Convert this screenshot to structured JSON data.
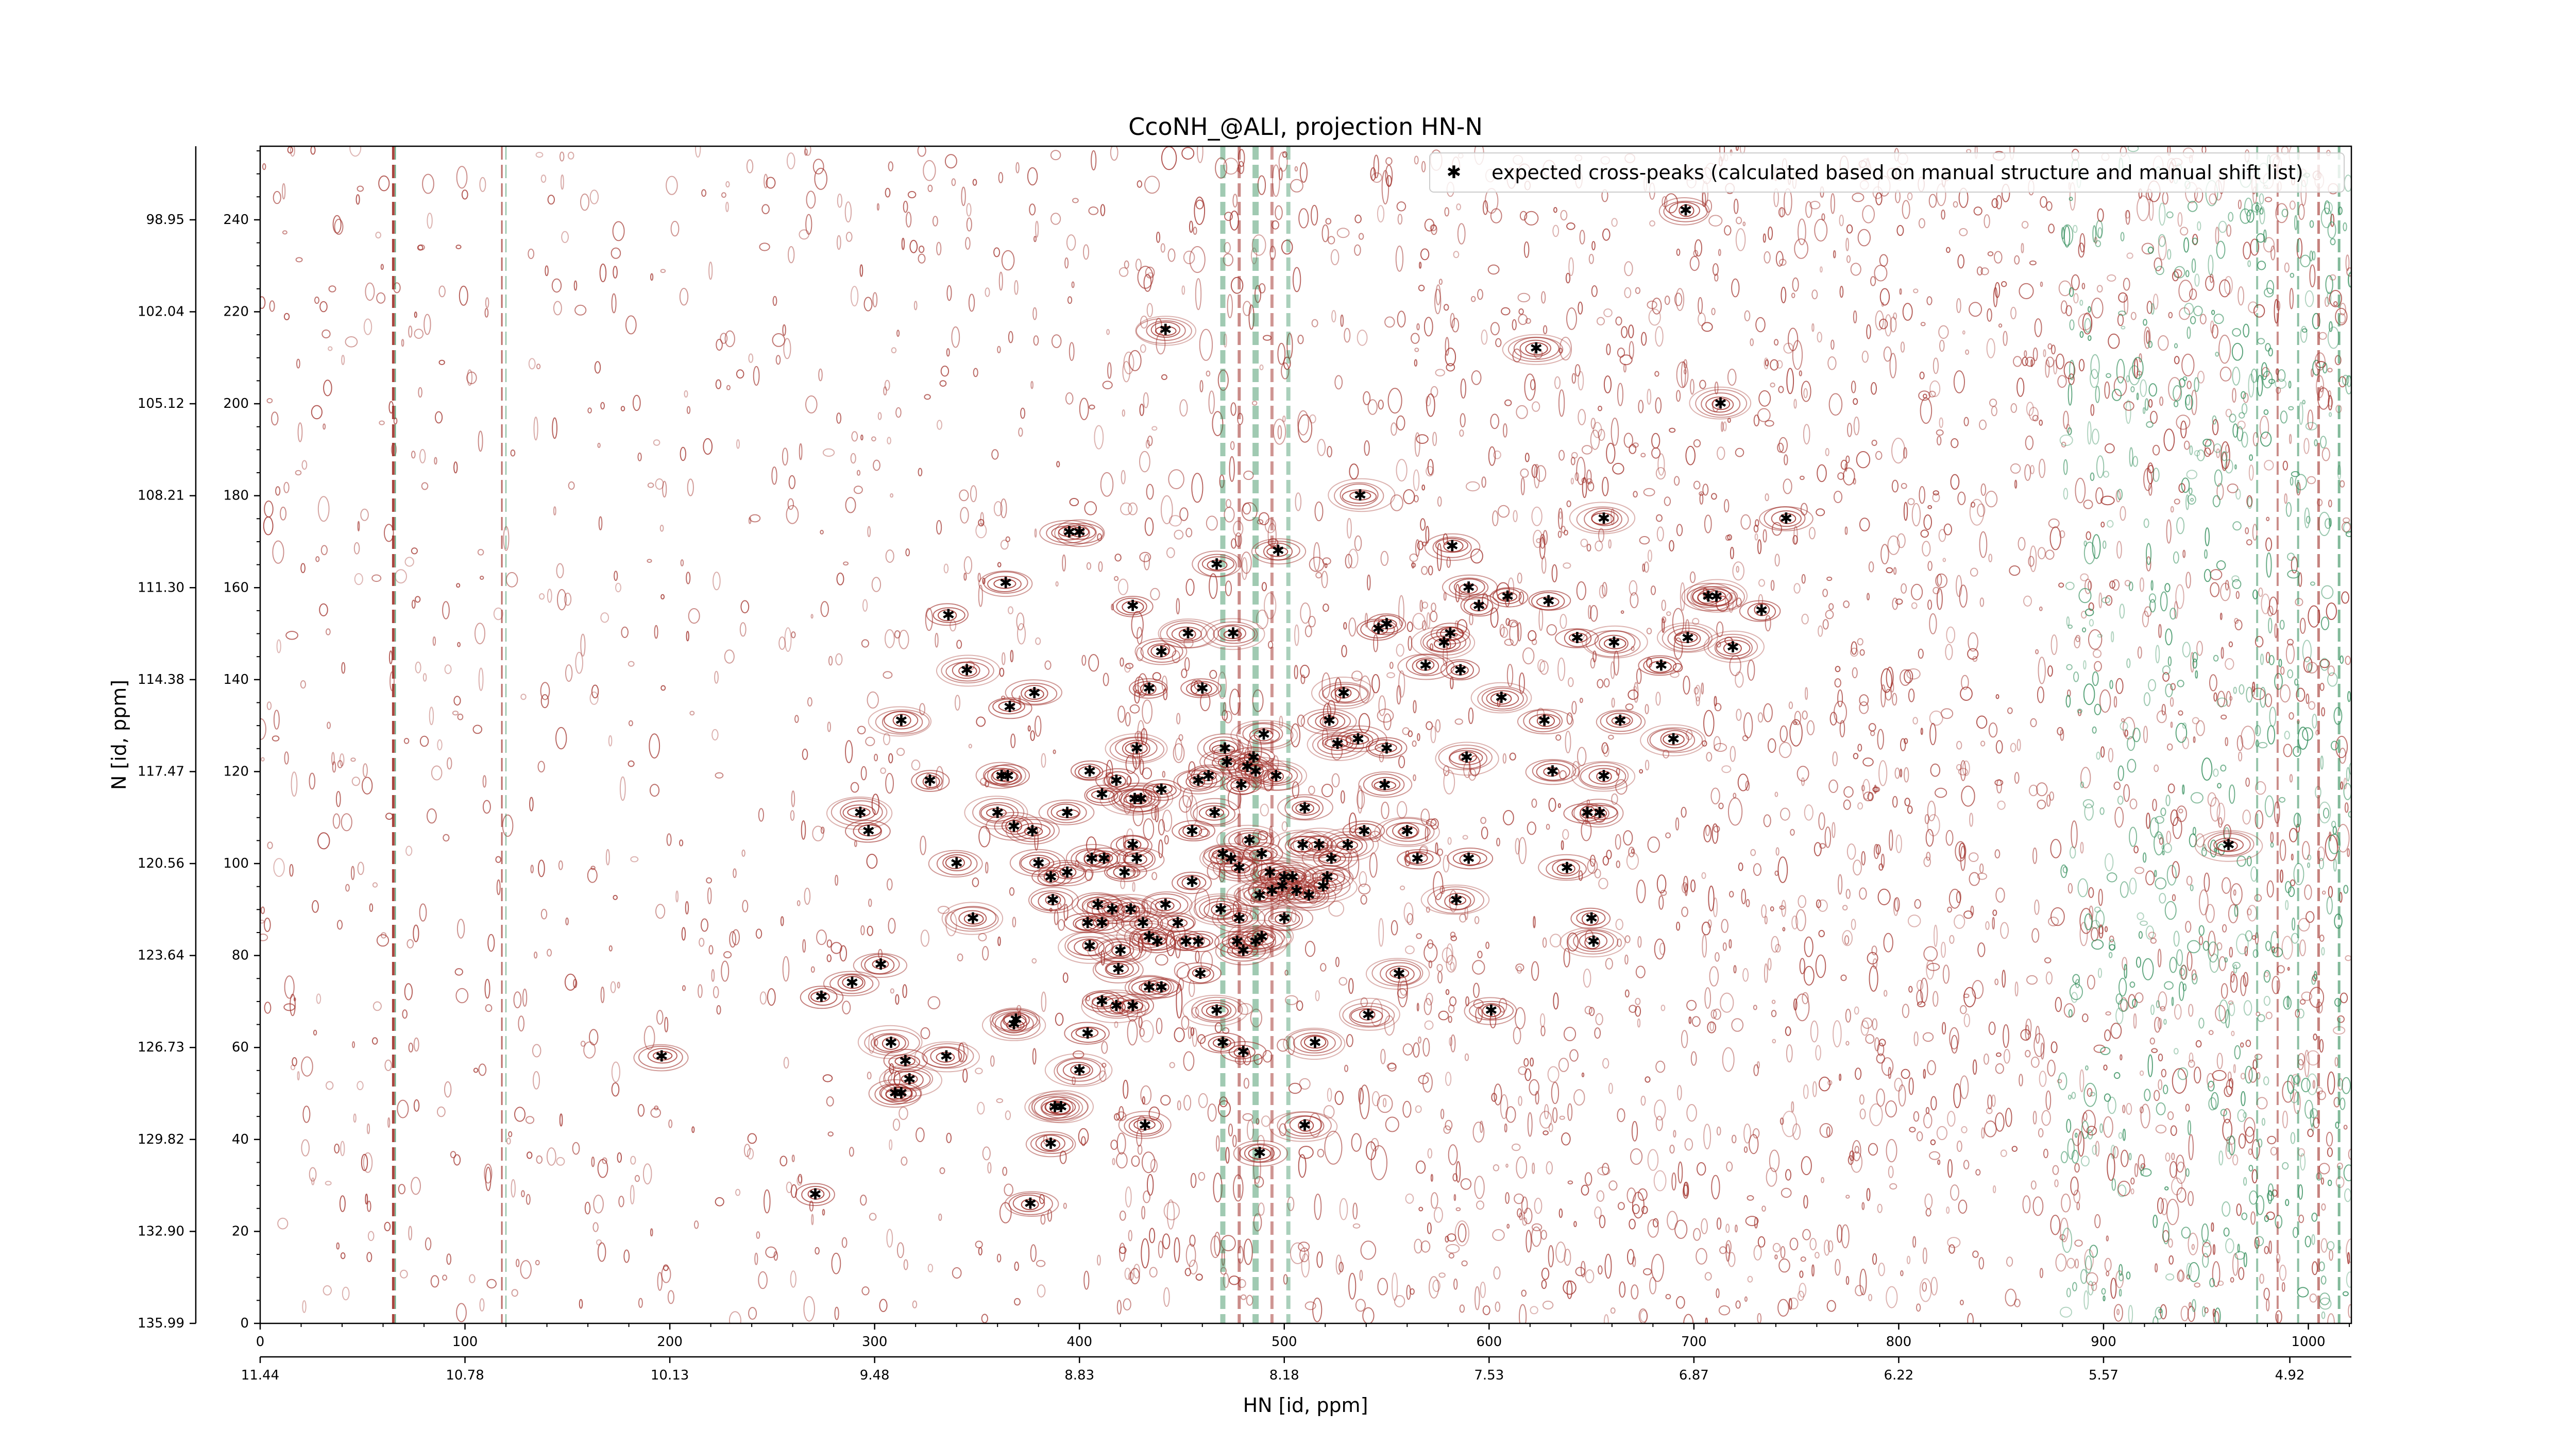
{
  "chart_data": {
    "type": "scatter",
    "title": "CcoNH_@ALI, projection HN-N",
    "xlabel": "HN [id, ppm]",
    "ylabel": "N [id, ppm]",
    "x_index_ticks": [
      "0",
      "100",
      "200",
      "300",
      "400",
      "500",
      "600",
      "700",
      "800",
      "900",
      "1000"
    ],
    "x_ppm_ticks": [
      "11.44",
      "10.78",
      "10.13",
      "9.48",
      "8.83",
      "8.18",
      "7.53",
      "6.87",
      "6.22",
      "5.57",
      "4.92"
    ],
    "y_index_ticks": [
      "0",
      "20",
      "40",
      "60",
      "80",
      "100",
      "120",
      "140",
      "160",
      "180",
      "200",
      "220",
      "240"
    ],
    "y_ppm_ticks": [
      "135.99",
      "132.90",
      "129.82",
      "126.73",
      "123.64",
      "120.56",
      "117.47",
      "114.38",
      "111.30",
      "108.21",
      "105.12",
      "102.04",
      "98.95"
    ],
    "xlim": [
      0,
      1021
    ],
    "ylim": [
      0,
      256
    ],
    "grid": false,
    "legend": {
      "position": "top-right",
      "entries": [
        "expected cross-peaks (calculated based on manual structure and manual shift list)"
      ]
    },
    "colors": {
      "positive_contours": "#a0302a",
      "negative_contours": "#2e8b57",
      "cross_peaks": "#0000ee"
    },
    "series": [
      {
        "name": "expected cross-peaks (calculated based on manual structure and manual shift list)",
        "points": [
          [
            696,
            242
          ],
          [
            442,
            216
          ],
          [
            623,
            212
          ],
          [
            713,
            200
          ],
          [
            537,
            180
          ],
          [
            656,
            175
          ],
          [
            745,
            175
          ],
          [
            395,
            172
          ],
          [
            400,
            172
          ],
          [
            497,
            168
          ],
          [
            582,
            169
          ],
          [
            467,
            165
          ],
          [
            364,
            161
          ],
          [
            590,
            160
          ],
          [
            609,
            158
          ],
          [
            629,
            157
          ],
          [
            595,
            156
          ],
          [
            707,
            158
          ],
          [
            711,
            158
          ],
          [
            733,
            155
          ],
          [
            426,
            156
          ],
          [
            336,
            154
          ],
          [
            453,
            150
          ],
          [
            475,
            150
          ],
          [
            550,
            152
          ],
          [
            546,
            151
          ],
          [
            581,
            150
          ],
          [
            643,
            149
          ],
          [
            661,
            148
          ],
          [
            697,
            149
          ],
          [
            719,
            147
          ],
          [
            440,
            146
          ],
          [
            578,
            148
          ],
          [
            345,
            142
          ],
          [
            569,
            143
          ],
          [
            586,
            142
          ],
          [
            684,
            143
          ],
          [
            434,
            138
          ],
          [
            460,
            138
          ],
          [
            378,
            137
          ],
          [
            529,
            137
          ],
          [
            606,
            136
          ],
          [
            366,
            134
          ],
          [
            313,
            131
          ],
          [
            522,
            131
          ],
          [
            627,
            131
          ],
          [
            664,
            131
          ],
          [
            490,
            128
          ],
          [
            526,
            126
          ],
          [
            536,
            127
          ],
          [
            690,
            127
          ],
          [
            428,
            125
          ],
          [
            471,
            125
          ],
          [
            550,
            125
          ],
          [
            485,
            123
          ],
          [
            472,
            122
          ],
          [
            589,
            123
          ],
          [
            631,
            120
          ],
          [
            482,
            121
          ],
          [
            405,
            120
          ],
          [
            486,
            120
          ],
          [
            496,
            119
          ],
          [
            656,
            119
          ],
          [
            327,
            118
          ],
          [
            362,
            119
          ],
          [
            365,
            119
          ],
          [
            418,
            118
          ],
          [
            458,
            118
          ],
          [
            463,
            119
          ],
          [
            479,
            117
          ],
          [
            411,
            115
          ],
          [
            549,
            117
          ],
          [
            440,
            116
          ],
          [
            427,
            114
          ],
          [
            430,
            114
          ],
          [
            293,
            111
          ],
          [
            360,
            111
          ],
          [
            394,
            111
          ],
          [
            510,
            112
          ],
          [
            648,
            111
          ],
          [
            654,
            111
          ],
          [
            466,
            111
          ],
          [
            297,
            107
          ],
          [
            368,
            108
          ],
          [
            377,
            107
          ],
          [
            539,
            107
          ],
          [
            560,
            107
          ],
          [
            455,
            107
          ],
          [
            426,
            104
          ],
          [
            483,
            105
          ],
          [
            509,
            104
          ],
          [
            517,
            104
          ],
          [
            531,
            104
          ],
          [
            340,
            100
          ],
          [
            380,
            100
          ],
          [
            406,
            101
          ],
          [
            412,
            101
          ],
          [
            428,
            101
          ],
          [
            470,
            102
          ],
          [
            474,
            101
          ],
          [
            489,
            102
          ],
          [
            523,
            101
          ],
          [
            565,
            101
          ],
          [
            590,
            101
          ],
          [
            638,
            99
          ],
          [
            961,
            104
          ],
          [
            386,
            97
          ],
          [
            394,
            98
          ],
          [
            422,
            98
          ],
          [
            455,
            96
          ],
          [
            478,
            99
          ],
          [
            493,
            98
          ],
          [
            500,
            97
          ],
          [
            504,
            97
          ],
          [
            521,
            97
          ],
          [
            387,
            92
          ],
          [
            584,
            92
          ],
          [
            409,
            91
          ],
          [
            416,
            90
          ],
          [
            425,
            90
          ],
          [
            442,
            91
          ],
          [
            488,
            93
          ],
          [
            494,
            94
          ],
          [
            469,
            90
          ],
          [
            499,
            95
          ],
          [
            506,
            94
          ],
          [
            512,
            93
          ],
          [
            519,
            95
          ],
          [
            348,
            88
          ],
          [
            404,
            87
          ],
          [
            411,
            87
          ],
          [
            431,
            87
          ],
          [
            448,
            87
          ],
          [
            478,
            88
          ],
          [
            500,
            88
          ],
          [
            650,
            88
          ],
          [
            434,
            84
          ],
          [
            438,
            83
          ],
          [
            452,
            83
          ],
          [
            458,
            83
          ],
          [
            477,
            83
          ],
          [
            486,
            83
          ],
          [
            489,
            84
          ],
          [
            405,
            82
          ],
          [
            420,
            81
          ],
          [
            480,
            81
          ],
          [
            651,
            83
          ],
          [
            303,
            78
          ],
          [
            419,
            77
          ],
          [
            459,
            76
          ],
          [
            556,
            76
          ],
          [
            289,
            74
          ],
          [
            434,
            73
          ],
          [
            440,
            73
          ],
          [
            274,
            71
          ],
          [
            411,
            70
          ],
          [
            418,
            69
          ],
          [
            426,
            69
          ],
          [
            467,
            68
          ],
          [
            541,
            67
          ],
          [
            601,
            68
          ],
          [
            369,
            66
          ],
          [
            368,
            65
          ],
          [
            404,
            63
          ],
          [
            308,
            61
          ],
          [
            470,
            61
          ],
          [
            515,
            61
          ],
          [
            480,
            59
          ],
          [
            335,
            58
          ],
          [
            315,
            57
          ],
          [
            317,
            53
          ],
          [
            310,
            50
          ],
          [
            313,
            50
          ],
          [
            196,
            58
          ],
          [
            400,
            55
          ],
          [
            391,
            47
          ],
          [
            388,
            47
          ],
          [
            432,
            43
          ],
          [
            510,
            43
          ],
          [
            386,
            39
          ],
          [
            488,
            37
          ],
          [
            271,
            28
          ],
          [
            376,
            26
          ]
        ]
      }
    ]
  }
}
